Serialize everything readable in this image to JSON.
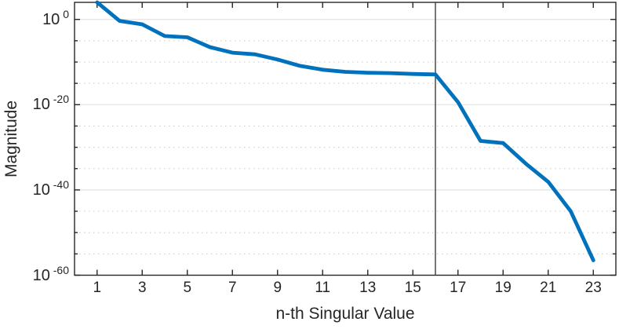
{
  "chart_data": {
    "type": "line",
    "title": "",
    "xlabel": "n-th Singular Value",
    "ylabel": "Magnitude",
    "y_scale": "log10",
    "x": [
      1,
      2,
      3,
      4,
      5,
      6,
      7,
      8,
      9,
      10,
      11,
      12,
      13,
      14,
      15,
      16,
      17,
      18,
      19,
      20,
      21,
      22,
      23
    ],
    "values_log10": [
      4.0,
      -0.35,
      -1.15,
      -3.9,
      -4.2,
      -6.5,
      -7.8,
      -8.2,
      -9.4,
      -10.9,
      -11.8,
      -12.3,
      -12.5,
      -12.6,
      -12.8,
      -12.9,
      -19.4,
      -28.5,
      -29.0,
      -33.8,
      -38.1,
      -45.0,
      -56.5
    ],
    "xlim": [
      0,
      24
    ],
    "ylim_log10": [
      -60,
      4
    ],
    "x_ticks": [
      1,
      3,
      5,
      7,
      9,
      11,
      13,
      15,
      17,
      19,
      21,
      23
    ],
    "y_tick_exponents": [
      0,
      -20,
      -40,
      -60
    ],
    "y_tick_base": "10",
    "y_minor_exponent_step": 5,
    "marker_line_x": 16,
    "grid": "horizontal only: solid major lines every 20 decades, dotted minor lines every 5 decades",
    "legend": "none",
    "line_color": "#0072BD",
    "marker_line_color": "#3d3d3d",
    "axis_color": "#262626",
    "background_color": "#ffffff"
  }
}
